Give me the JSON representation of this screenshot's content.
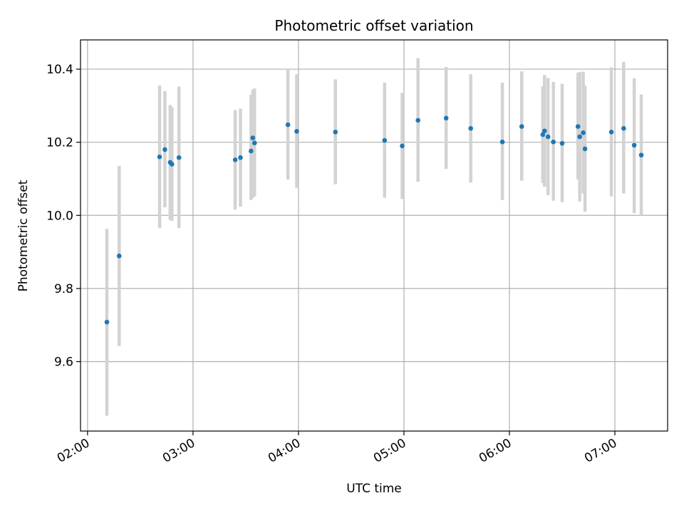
{
  "chart_data": {
    "type": "scatter",
    "title": "Photometric offset variation",
    "xlabel": "UTC time",
    "ylabel": "Photometric offset",
    "grid": true,
    "x_unit": "UTC time (HH:MM)",
    "xlim": [
      "01:56",
      "07:30"
    ],
    "ylim": [
      9.41,
      10.48
    ],
    "x_ticks": [
      "02:00",
      "03:00",
      "04:00",
      "05:00",
      "06:00",
      "07:00"
    ],
    "y_ticks": [
      9.6,
      9.8,
      10.0,
      10.2,
      10.4
    ],
    "y_tick_labels": [
      "9.6",
      "9.8",
      "10.0",
      "10.2",
      "10.4"
    ],
    "colors": {
      "marker": "#1f77b4",
      "errorbar": "#d3d3d3",
      "grid": "#b0b0b0",
      "axes": "#000000"
    },
    "series": [
      {
        "points": [
          {
            "x": "02:11",
            "y": 9.708,
            "ylow": 9.452,
            "yhigh": 9.963
          },
          {
            "x": "02:18",
            "y": 9.889,
            "ylow": 9.643,
            "yhigh": 10.135
          },
          {
            "x": "02:41",
            "y": 10.16,
            "ylow": 9.965,
            "yhigh": 10.355
          },
          {
            "x": "02:44",
            "y": 10.18,
            "ylow": 10.022,
            "yhigh": 10.34
          },
          {
            "x": "02:47",
            "y": 10.145,
            "ylow": 9.988,
            "yhigh": 10.302
          },
          {
            "x": "02:48",
            "y": 10.14,
            "ylow": 9.985,
            "yhigh": 10.296
          },
          {
            "x": "02:52",
            "y": 10.158,
            "ylow": 9.965,
            "yhigh": 10.352
          },
          {
            "x": "03:24",
            "y": 10.152,
            "ylow": 10.016,
            "yhigh": 10.288
          },
          {
            "x": "03:27",
            "y": 10.158,
            "ylow": 10.024,
            "yhigh": 10.292
          },
          {
            "x": "03:33",
            "y": 10.176,
            "ylow": 10.042,
            "yhigh": 10.33
          },
          {
            "x": "03:34",
            "y": 10.212,
            "ylow": 10.048,
            "yhigh": 10.343
          },
          {
            "x": "03:35",
            "y": 10.198,
            "ylow": 10.052,
            "yhigh": 10.347
          },
          {
            "x": "03:54",
            "y": 10.248,
            "ylow": 10.098,
            "yhigh": 10.398
          },
          {
            "x": "03:59",
            "y": 10.23,
            "ylow": 10.075,
            "yhigh": 10.386
          },
          {
            "x": "04:21",
            "y": 10.228,
            "ylow": 10.085,
            "yhigh": 10.372
          },
          {
            "x": "04:49",
            "y": 10.205,
            "ylow": 10.048,
            "yhigh": 10.363
          },
          {
            "x": "04:59",
            "y": 10.19,
            "ylow": 10.045,
            "yhigh": 10.335
          },
          {
            "x": "05:08",
            "y": 10.26,
            "ylow": 10.092,
            "yhigh": 10.43
          },
          {
            "x": "05:24",
            "y": 10.266,
            "ylow": 10.127,
            "yhigh": 10.406
          },
          {
            "x": "05:38",
            "y": 10.238,
            "ylow": 10.09,
            "yhigh": 10.386
          },
          {
            "x": "05:56",
            "y": 10.201,
            "ylow": 10.042,
            "yhigh": 10.363
          },
          {
            "x": "06:07",
            "y": 10.243,
            "ylow": 10.095,
            "yhigh": 10.394
          },
          {
            "x": "06:19",
            "y": 10.221,
            "ylow": 10.088,
            "yhigh": 10.353
          },
          {
            "x": "06:20",
            "y": 10.231,
            "ylow": 10.078,
            "yhigh": 10.384
          },
          {
            "x": "06:22",
            "y": 10.215,
            "ylow": 10.055,
            "yhigh": 10.376
          },
          {
            "x": "06:25",
            "y": 10.201,
            "ylow": 10.04,
            "yhigh": 10.365
          },
          {
            "x": "06:30",
            "y": 10.197,
            "ylow": 10.036,
            "yhigh": 10.36
          },
          {
            "x": "06:39",
            "y": 10.243,
            "ylow": 10.098,
            "yhigh": 10.39
          },
          {
            "x": "06:40",
            "y": 10.215,
            "ylow": 10.038,
            "yhigh": 10.392
          },
          {
            "x": "06:42",
            "y": 10.226,
            "ylow": 10.06,
            "yhigh": 10.393
          },
          {
            "x": "06:43",
            "y": 10.182,
            "ylow": 10.01,
            "yhigh": 10.355
          },
          {
            "x": "06:58",
            "y": 10.228,
            "ylow": 10.052,
            "yhigh": 10.405
          },
          {
            "x": "07:05",
            "y": 10.238,
            "ylow": 10.06,
            "yhigh": 10.42
          },
          {
            "x": "07:11",
            "y": 10.192,
            "ylow": 10.006,
            "yhigh": 10.375
          },
          {
            "x": "07:15",
            "y": 10.165,
            "ylow": 10.0,
            "yhigh": 10.331
          }
        ]
      }
    ]
  }
}
